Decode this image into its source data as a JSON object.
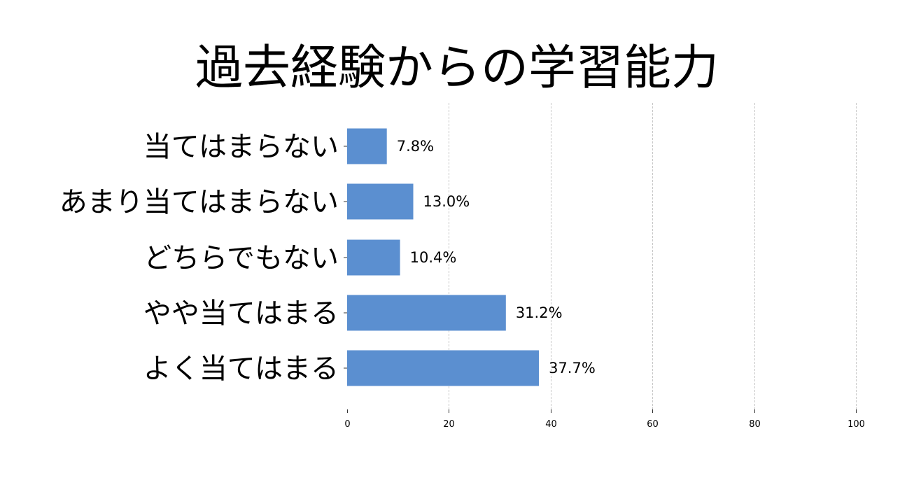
{
  "chart_data": {
    "type": "bar",
    "orientation": "horizontal",
    "title": "過去経験からの学習能力",
    "categories": [
      "当てはまらない",
      "あまり当てはまらない",
      "どちらでもない",
      "やや当てはまる",
      "よく当てはまる"
    ],
    "values": [
      7.8,
      13.0,
      10.4,
      31.2,
      37.7
    ],
    "data_labels": [
      "7.8%",
      "13.0%",
      "10.4%",
      "31.2%",
      "37.7%"
    ],
    "xlim": [
      0,
      100
    ],
    "x_ticks": [
      0,
      20,
      40,
      60,
      80,
      100
    ],
    "x_tick_labels": [
      "0",
      "20",
      "40",
      "60",
      "80",
      "100"
    ],
    "xlabel": "",
    "ylabel": "",
    "grid": "vertical dashed",
    "bar_color": "#5b8fd0"
  }
}
